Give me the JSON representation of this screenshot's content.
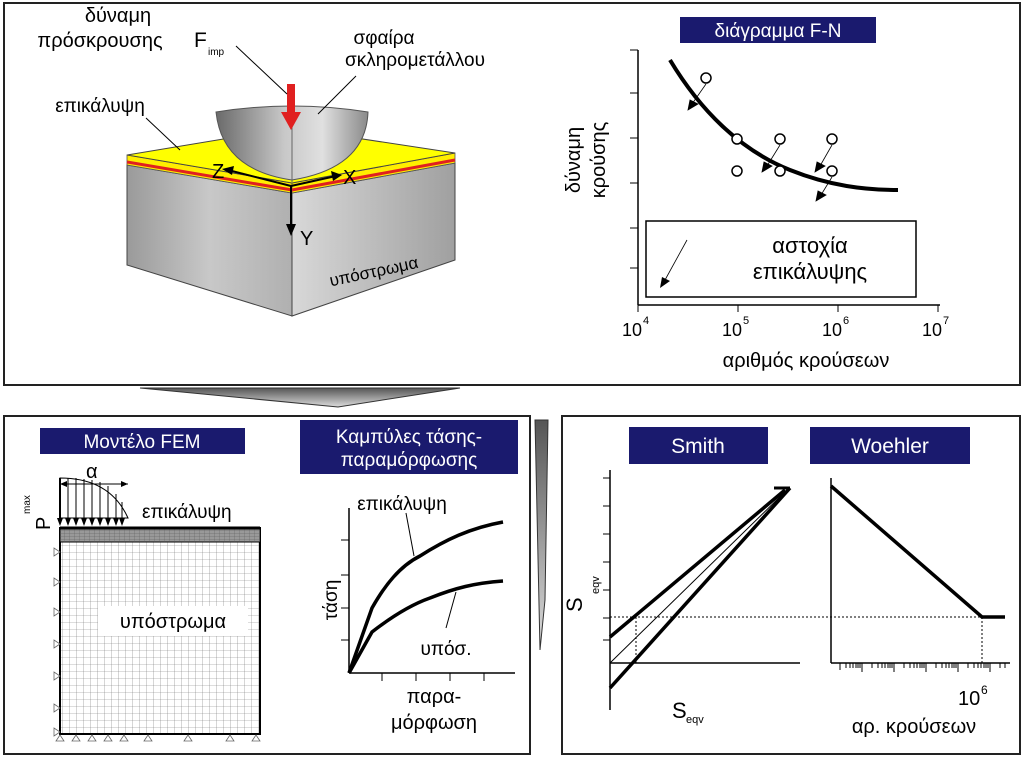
{
  "top_panel": {
    "impact_force_label_line1": "δύναμη",
    "impact_force_label_line2": "πρόσκρουσης",
    "force_symbol": "F",
    "force_subscript": "imp",
    "sphere_label_line1": "σφαίρα",
    "sphere_label_line2": "σκληρομετάλλου",
    "coating_label": "επικάλυψη",
    "axis_z": "Z",
    "axis_x": "X",
    "axis_y": "Y",
    "substrate_label": "υπόστρωμα"
  },
  "fn_diagram": {
    "title": "διάγραμμα F-N",
    "ylabel_line1": "δύναμη",
    "ylabel_line2": "κρούσης",
    "xlabel": "αριθμός κρούσεων",
    "xticks": [
      {
        "base": "10",
        "exp": "4"
      },
      {
        "base": "10",
        "exp": "5"
      },
      {
        "base": "10",
        "exp": "6"
      },
      {
        "base": "10",
        "exp": "7"
      }
    ],
    "legend_line1": "αστοχία",
    "legend_line2": "επικάλυψης"
  },
  "fem_panel": {
    "title": "Μοντέλο FEM",
    "alpha": "α",
    "pmax": "P",
    "pmax_sub": "max",
    "coating_label": "επικάλυψη",
    "substrate_label": "υπόστρωμα"
  },
  "stress_strain": {
    "title_line1": "Καμπύλες τάσης-",
    "title_line2": "παραμόρφωσης",
    "coating_curve_label": "επικάλυψη",
    "ylabel": "τάση",
    "substrate_curve_label": "υπόσ.",
    "xlabel_line1": "παρα-",
    "xlabel_line2": "μόρφωση"
  },
  "smith": {
    "title": "Smith",
    "ylabel": "S",
    "ylabel_sub": "eqv",
    "xlabel": "S",
    "xlabel_sub": "eqv"
  },
  "woehler": {
    "title": "Woehler",
    "tick_base": "10",
    "tick_exp": "6",
    "xlabel": "αρ. κρούσεων"
  },
  "colors": {
    "title_box_bg": "#1a1a6e",
    "coating_yellow": "#ffff00",
    "interface_red": "#e02020",
    "substrate_gray": "#b8b8b8",
    "force_arrow": "#e02020"
  }
}
